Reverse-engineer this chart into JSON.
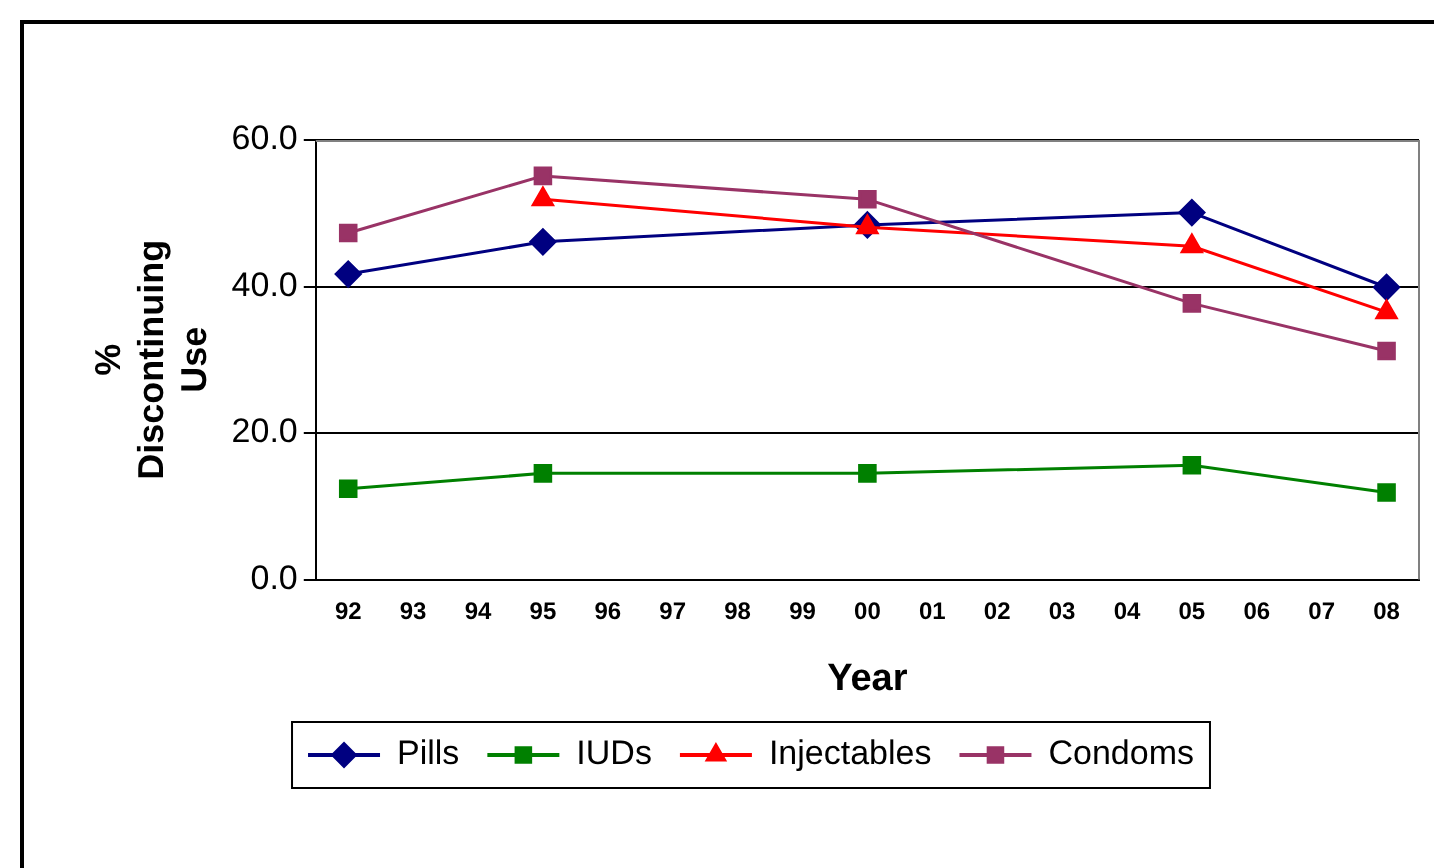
{
  "chart_data": {
    "type": "line",
    "xlabel": "Year",
    "ylabel": "% Discontinuing Use",
    "categories": [
      "92",
      "93",
      "94",
      "95",
      "96",
      "97",
      "98",
      "99",
      "00",
      "01",
      "02",
      "03",
      "04",
      "05",
      "06",
      "07",
      "08"
    ],
    "series": [
      {
        "name": "Pills",
        "color": "#000080",
        "marker": "diamond",
        "values": [
          41.7,
          null,
          null,
          46.1,
          null,
          null,
          null,
          null,
          48.4,
          null,
          null,
          null,
          null,
          50.1,
          null,
          null,
          39.9
        ]
      },
      {
        "name": "IUDs",
        "color": "#008000",
        "marker": "square",
        "values": [
          12.4,
          null,
          null,
          14.5,
          null,
          null,
          null,
          null,
          14.5,
          null,
          null,
          null,
          null,
          15.6,
          null,
          null,
          11.9
        ]
      },
      {
        "name": "Injectables",
        "color": "#ff0000",
        "marker": "triangle",
        "values": [
          null,
          null,
          null,
          51.9,
          null,
          null,
          null,
          null,
          48.1,
          null,
          null,
          null,
          null,
          45.5,
          null,
          null,
          36.5
        ]
      },
      {
        "name": "Condoms",
        "color": "#993366",
        "marker": "square",
        "values": [
          47.3,
          null,
          null,
          55.1,
          null,
          null,
          null,
          null,
          51.9,
          null,
          null,
          null,
          null,
          37.7,
          null,
          null,
          31.2
        ]
      }
    ],
    "ylim": [
      0,
      60
    ],
    "yticks": [
      {
        "value": 0,
        "label": "0.0"
      },
      {
        "value": 20,
        "label": "20.0"
      },
      {
        "value": 40,
        "label": "40.0"
      },
      {
        "value": 60,
        "label": "60.0"
      }
    ],
    "grid": "y",
    "legend": "bottom",
    "line_style": "solid"
  }
}
